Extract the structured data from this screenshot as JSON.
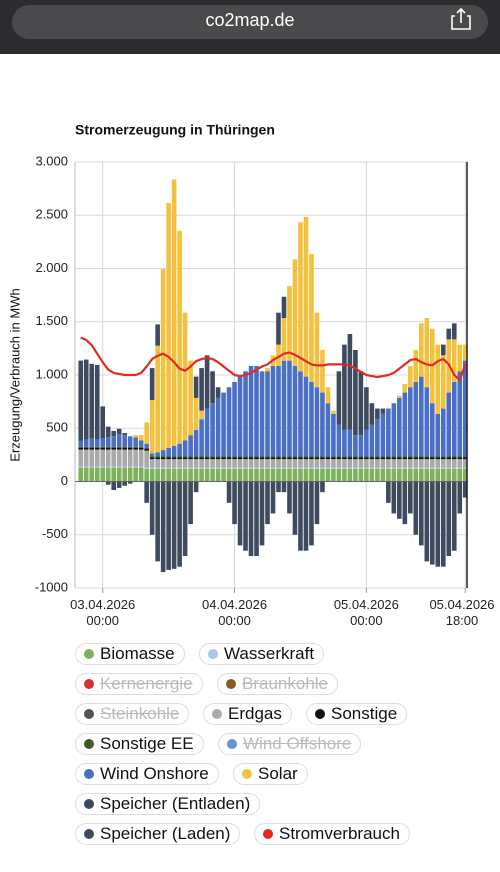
{
  "browser": {
    "url": "co2map.de"
  },
  "chart_data": {
    "type": "bar",
    "stacked": true,
    "title": "Stromerzeugung in Thüringen",
    "y_label": "Erzeugung/Verbrauch in MWh",
    "categories": [
      null,
      null,
      null,
      null,
      "03.04.2026 00:00",
      null,
      null,
      null,
      null,
      null,
      null,
      null,
      null,
      null,
      null,
      null,
      null,
      null,
      null,
      null,
      null,
      null,
      null,
      null,
      null,
      null,
      null,
      null,
      "04.04.2026 00:00",
      null,
      null,
      null,
      null,
      null,
      null,
      null,
      null,
      null,
      null,
      null,
      null,
      null,
      null,
      null,
      null,
      null,
      null,
      null,
      null,
      null,
      null,
      null,
      "05.04.2026 00:00",
      null,
      null,
      null,
      null,
      null,
      null,
      null,
      null,
      null,
      null,
      null,
      null,
      null,
      null,
      null,
      null,
      null,
      "05.04.2026 18:00"
    ],
    "ylim": [
      -1000,
      3000
    ],
    "yticks": [
      -1000,
      -500,
      0,
      500,
      {
        "value": 1000,
        "label": "1.000"
      },
      {
        "value": 1500,
        "label": "1.500"
      },
      {
        "value": 2000,
        "label": "2.000"
      },
      {
        "value": 2500,
        "label": "2.500"
      },
      {
        "value": 3000,
        "label": "3.000"
      }
    ],
    "grid": true,
    "series": [
      {
        "name": "Biomasse",
        "color": "#7cb35a",
        "values": [
          130,
          130,
          130,
          130,
          130,
          130,
          130,
          130,
          130,
          130,
          130,
          130,
          120,
          120,
          120,
          120,
          120,
          120,
          120,
          120,
          120,
          120,
          120,
          120,
          120,
          120,
          120,
          120,
          120,
          120,
          120,
          120,
          120,
          120,
          120,
          120,
          120,
          120,
          120,
          120,
          120,
          120,
          120,
          120,
          120,
          120,
          120,
          120,
          120,
          120,
          120,
          120,
          120,
          120,
          120,
          120,
          120,
          120,
          120,
          120,
          120,
          120,
          120,
          120,
          120,
          120,
          120,
          120,
          120,
          120,
          120
        ]
      },
      {
        "name": "Wasserkraft",
        "color": "#a6c8ea",
        "values": [
          10,
          10,
          10,
          10,
          10,
          10,
          10,
          10,
          10,
          10,
          10,
          10,
          10,
          10,
          10,
          10,
          10,
          10,
          10,
          10,
          10,
          10,
          10,
          10,
          10,
          10,
          10,
          10,
          10,
          10,
          10,
          10,
          10,
          10,
          10,
          10,
          10,
          10,
          10,
          10,
          10,
          10,
          10,
          10,
          10,
          10,
          10,
          10,
          10,
          10,
          10,
          10,
          10,
          10,
          10,
          10,
          10,
          10,
          10,
          10,
          10,
          10,
          10,
          10,
          10,
          10,
          10,
          10,
          10,
          10,
          10
        ]
      },
      {
        "name": "Kernenergie",
        "color": "#d6312b",
        "hidden": true
      },
      {
        "name": "Braunkohle",
        "color": "#8b5a2b",
        "hidden": true
      },
      {
        "name": "Steinkohle",
        "color": "#555555",
        "hidden": true
      },
      {
        "name": "Erdgas",
        "color": "#aaaaaa",
        "values": [
          160,
          160,
          160,
          160,
          160,
          160,
          160,
          160,
          160,
          160,
          160,
          160,
          160,
          80,
          80,
          80,
          80,
          80,
          80,
          80,
          80,
          80,
          80,
          80,
          80,
          80,
          80,
          80,
          80,
          80,
          80,
          80,
          80,
          80,
          80,
          80,
          80,
          80,
          80,
          80,
          80,
          80,
          80,
          80,
          80,
          80,
          80,
          80,
          80,
          80,
          80,
          80,
          80,
          80,
          80,
          80,
          80,
          80,
          80,
          80,
          80,
          80,
          80,
          80,
          80,
          80,
          80,
          80,
          80,
          80,
          80
        ]
      },
      {
        "name": "Sonstige",
        "color": "#111111",
        "values": [
          15,
          15,
          15,
          15,
          15,
          15,
          15,
          15,
          15,
          15,
          15,
          15,
          15,
          15,
          15,
          15,
          15,
          15,
          15,
          15,
          15,
          15,
          15,
          15,
          15,
          15,
          15,
          15,
          15,
          15,
          15,
          15,
          15,
          15,
          15,
          15,
          15,
          15,
          15,
          15,
          15,
          15,
          15,
          15,
          15,
          15,
          15,
          15,
          15,
          15,
          15,
          15,
          15,
          15,
          15,
          15,
          15,
          15,
          15,
          15,
          15,
          15,
          15,
          15,
          15,
          15,
          15,
          15,
          15,
          15,
          15
        ]
      },
      {
        "name": "Sonstige EE",
        "color": "#3f5a26",
        "values": [
          10,
          10,
          10,
          10,
          10,
          10,
          10,
          10,
          10,
          10,
          10,
          10,
          10,
          10,
          10,
          10,
          10,
          10,
          10,
          10,
          10,
          10,
          10,
          10,
          10,
          10,
          10,
          10,
          10,
          10,
          10,
          10,
          10,
          10,
          10,
          10,
          10,
          10,
          10,
          10,
          10,
          10,
          10,
          10,
          10,
          10,
          10,
          10,
          10,
          10,
          10,
          10,
          10,
          10,
          10,
          10,
          10,
          10,
          10,
          10,
          10,
          10,
          10,
          10,
          10,
          10,
          10,
          10,
          10,
          10,
          10
        ]
      },
      {
        "name": "Wind Offshore",
        "color": "#6a8fd0",
        "hidden": true
      },
      {
        "name": "Wind Onshore",
        "color": "#4a6fc4",
        "values": [
          60,
          70,
          80,
          70,
          80,
          90,
          100,
          120,
          110,
          100,
          90,
          60,
          40,
          30,
          40,
          60,
          80,
          100,
          120,
          150,
          200,
          250,
          350,
          450,
          500,
          550,
          600,
          650,
          700,
          750,
          800,
          850,
          850,
          800,
          800,
          850,
          850,
          900,
          900,
          850,
          800,
          750,
          700,
          650,
          600,
          500,
          400,
          300,
          250,
          250,
          200,
          200,
          250,
          300,
          350,
          400,
          450,
          500,
          550,
          600,
          650,
          700,
          750,
          650,
          500,
          400,
          450,
          600,
          700,
          800,
          900
        ]
      },
      {
        "name": "Solar",
        "color": "#f2c13e",
        "values": [
          0,
          0,
          0,
          0,
          0,
          0,
          0,
          0,
          0,
          0,
          20,
          50,
          200,
          500,
          1000,
          1700,
          2300,
          2500,
          2000,
          1200,
          700,
          300,
          80,
          0,
          0,
          0,
          0,
          0,
          0,
          0,
          0,
          0,
          0,
          0,
          30,
          100,
          200,
          400,
          700,
          1000,
          1400,
          1500,
          1200,
          700,
          400,
          150,
          30,
          0,
          0,
          0,
          0,
          0,
          0,
          0,
          0,
          0,
          0,
          0,
          20,
          80,
          200,
          300,
          500,
          650,
          700,
          650,
          500,
          500,
          400,
          250,
          150
        ]
      },
      {
        "name": "Speicher (Entladen)",
        "color": "#3e4b5e",
        "values": [
          750,
          750,
          700,
          700,
          300,
          100,
          50,
          50,
          20,
          0,
          0,
          0,
          0,
          300,
          200,
          0,
          0,
          0,
          0,
          0,
          0,
          200,
          400,
          500,
          300,
          100,
          0,
          0,
          0,
          0,
          0,
          0,
          0,
          0,
          0,
          0,
          300,
          200,
          0,
          0,
          0,
          0,
          0,
          0,
          0,
          0,
          0,
          500,
          800,
          900,
          800,
          600,
          400,
          200,
          100,
          50,
          0,
          0,
          0,
          0,
          0,
          0,
          0,
          0,
          0,
          0,
          100,
          100,
          150,
          0,
          0
        ]
      },
      {
        "name": "Speicher (Laden)",
        "color": "#3e4b5e",
        "values": [
          0,
          0,
          0,
          0,
          0,
          -30,
          -80,
          -60,
          -40,
          -20,
          0,
          0,
          -200,
          -500,
          -750,
          -850,
          -830,
          -820,
          -800,
          -700,
          -400,
          -100,
          0,
          0,
          0,
          0,
          0,
          -200,
          -400,
          -600,
          -650,
          -700,
          -700,
          -600,
          -400,
          -300,
          -100,
          -100,
          -300,
          -500,
          -650,
          -650,
          -600,
          -400,
          -100,
          0,
          0,
          0,
          0,
          0,
          0,
          0,
          0,
          0,
          0,
          0,
          -200,
          -300,
          -350,
          -400,
          -300,
          -500,
          -600,
          -750,
          -780,
          -800,
          -800,
          -700,
          -650,
          -300,
          -150
        ]
      },
      {
        "name": "Stromverbrauch",
        "color": "#e02b20",
        "type": "line",
        "values": [
          1350,
          1330,
          1280,
          1200,
          1120,
          1050,
          1020,
          1010,
          1000,
          1000,
          1000,
          1020,
          1080,
          1150,
          1180,
          1200,
          1170,
          1120,
          1060,
          1040,
          1080,
          1130,
          1150,
          1160,
          1150,
          1120,
          1080,
          1040,
          1000,
          990,
          1000,
          1020,
          1050,
          1080,
          1100,
          1140,
          1170,
          1200,
          1210,
          1190,
          1160,
          1130,
          1100,
          1090,
          1090,
          1100,
          1100,
          1100,
          1100,
          1090,
          1060,
          1030,
          1000,
          990,
          980,
          990,
          1000,
          1020,
          1060,
          1100,
          1140,
          1150,
          1120,
          1100,
          1090,
          1130,
          1150,
          1100,
          1000,
          950,
          1100
        ]
      }
    ]
  }
}
